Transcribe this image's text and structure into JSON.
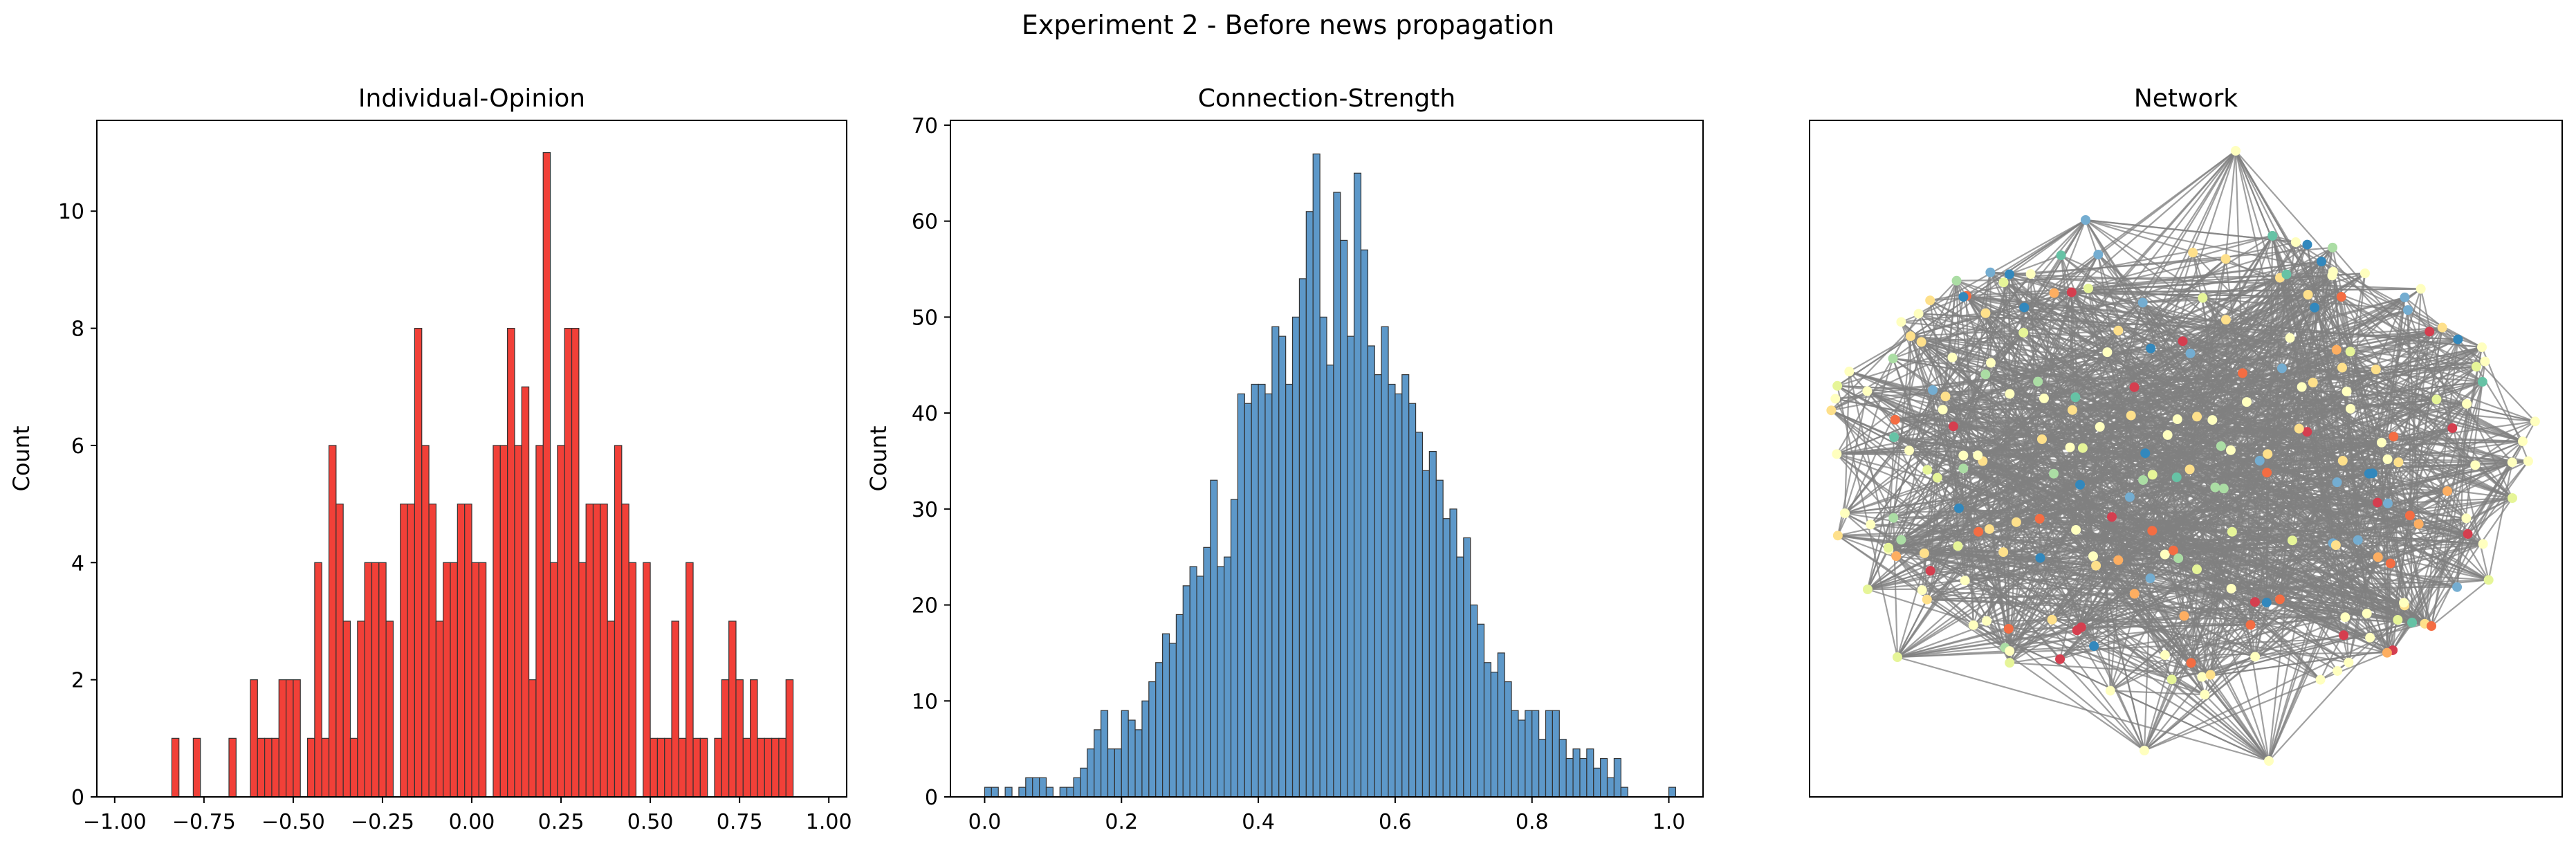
{
  "figure": {
    "suptitle": "Experiment 2 - Before news propagation"
  },
  "chart_data": [
    {
      "type": "bar",
      "title": "Individual-Opinion",
      "xlabel": "",
      "ylabel": "Count",
      "color": "#f03027",
      "xlim": [
        -1.05,
        1.05
      ],
      "ylim": [
        0,
        11.55
      ],
      "xticks": [
        -1.0,
        -0.75,
        -0.5,
        -0.25,
        0.0,
        0.25,
        0.5,
        0.75,
        1.0
      ],
      "xtick_labels": [
        "−1.00",
        "−0.75",
        "−0.50",
        "−0.25",
        "0.00",
        "0.25",
        "0.50",
        "0.75",
        "1.00"
      ],
      "yticks": [
        0,
        2,
        4,
        6,
        8,
        10
      ],
      "ytick_labels": [
        "0",
        "2",
        "4",
        "6",
        "8",
        "10"
      ],
      "bin_start": -1.0,
      "bin_width": 0.02,
      "values": [
        0,
        0,
        0,
        0,
        0,
        0,
        0,
        0,
        1,
        0,
        0,
        1,
        0,
        0,
        0,
        0,
        1,
        0,
        0,
        2,
        1,
        1,
        1,
        2,
        2,
        2,
        0,
        1,
        4,
        1,
        6,
        5,
        3,
        1,
        3,
        4,
        4,
        4,
        3,
        0,
        5,
        5,
        8,
        6,
        5,
        3,
        4,
        4,
        5,
        5,
        4,
        4,
        0,
        6,
        6,
        8,
        6,
        7,
        2,
        6,
        11,
        4,
        6,
        8,
        8,
        4,
        5,
        5,
        5,
        3,
        6,
        5,
        4,
        0,
        4,
        1,
        1,
        1,
        3,
        1,
        4,
        1,
        1,
        0,
        1,
        2,
        3,
        2,
        1,
        2,
        1,
        1,
        1,
        1,
        2,
        0,
        0,
        0,
        0,
        0
      ]
    },
    {
      "type": "bar",
      "title": "Connection-Strength",
      "xlabel": "",
      "ylabel": "Count",
      "color": "#4f8fc4",
      "xlim": [
        -0.05,
        1.05
      ],
      "ylim": [
        0,
        70.5
      ],
      "xticks": [
        0.0,
        0.2,
        0.4,
        0.6,
        0.8,
        1.0
      ],
      "xtick_labels": [
        "0.0",
        "0.2",
        "0.4",
        "0.6",
        "0.8",
        "1.0"
      ],
      "yticks": [
        0,
        10,
        20,
        30,
        40,
        50,
        60,
        70
      ],
      "ytick_labels": [
        "0",
        "10",
        "20",
        "30",
        "40",
        "50",
        "60",
        "70"
      ],
      "bin_start": 0.0,
      "bin_width": 0.01,
      "values": [
        1,
        1,
        0,
        1,
        0,
        1,
        2,
        2,
        2,
        1,
        0,
        1,
        1,
        2,
        3,
        5,
        7,
        9,
        5,
        5,
        9,
        8,
        7,
        10,
        12,
        14,
        17,
        16,
        19,
        22,
        24,
        23,
        26,
        33,
        24,
        25,
        31,
        42,
        41,
        43,
        43,
        42,
        49,
        48,
        43,
        50,
        54,
        61,
        67,
        50,
        45,
        63,
        58,
        48,
        65,
        57,
        47,
        44,
        49,
        43,
        42,
        44,
        41,
        38,
        34,
        36,
        33,
        29,
        30,
        25,
        27,
        20,
        18,
        14,
        13,
        15,
        12,
        9,
        8,
        9,
        9,
        6,
        9,
        9,
        6,
        4,
        5,
        4,
        5,
        3,
        4,
        2,
        4,
        1,
        0,
        0,
        0,
        0,
        0,
        0,
        1
      ]
    },
    {
      "type": "scatter",
      "title": "Network",
      "xlabel": "",
      "ylabel": ""
    }
  ],
  "network": {
    "node_count": 220,
    "edge_count": 1350,
    "edge_color": "#808080",
    "node_colors": [
      "#ffffbf",
      "#ffffbf",
      "#ffffbf",
      "#ffffbf",
      "#fee08b",
      "#fee08b",
      "#fdae61",
      "#e6f598",
      "#abdda4",
      "#66c2a5",
      "#74add1",
      "#3288bd",
      "#f46d43",
      "#d53e4f"
    ]
  }
}
